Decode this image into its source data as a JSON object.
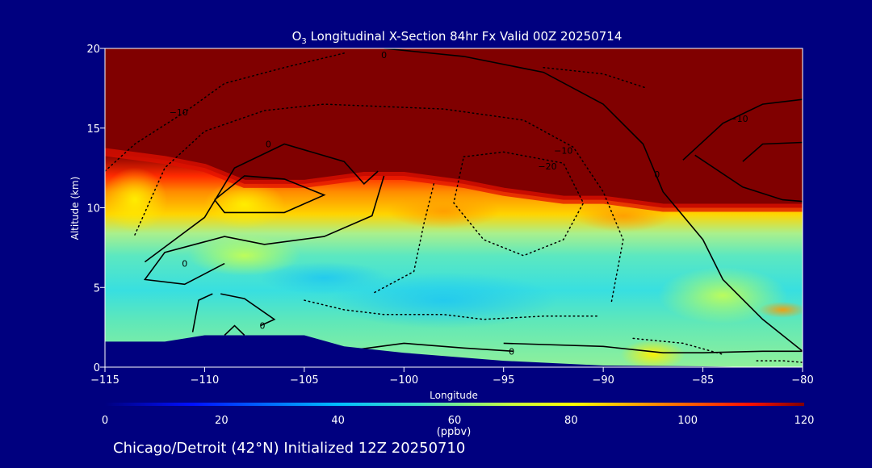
{
  "title": {
    "prefix": "O",
    "sub": "3",
    "rest": " Longitudinal X-Section 84hr  Fx Valid 00Z 20250714"
  },
  "subtitle": "Chicago/Detroit (42°N) Initialized 12Z 20250710",
  "colors": {
    "background": "#00007f",
    "text": "#ffffff",
    "terrain": "#00007f",
    "contour": "#000000"
  },
  "chart_data": {
    "type": "heatmap",
    "xlabel": "Longitude",
    "ylabel": "Altitude (km)",
    "xlim": [
      -115,
      -80
    ],
    "ylim": [
      0,
      20
    ],
    "x_ticks": [
      -115,
      -110,
      -105,
      -100,
      -95,
      -90,
      -85,
      -80
    ],
    "x_tick_labels": [
      "−115",
      "−110",
      "−105",
      "−100",
      "−95",
      "−90",
      "−85",
      "−80"
    ],
    "y_ticks": [
      0,
      5,
      10,
      15,
      20
    ],
    "y_tick_labels": [
      "0",
      "5",
      "10",
      "15",
      "20"
    ],
    "colorbar": {
      "label": "(ppbv)",
      "range": [
        0,
        120
      ],
      "ticks": [
        0,
        20,
        40,
        60,
        80,
        100,
        120
      ],
      "tick_labels": [
        "0",
        "20",
        "40",
        "60",
        "80",
        "100",
        "120"
      ]
    },
    "field_name": "ozone (ppbv)",
    "ozone_profile": {
      "longitudes": [
        -115,
        -112,
        -110,
        -108,
        -105,
        -102,
        -100,
        -97,
        -95,
        -92,
        -90,
        -87,
        -85,
        -82,
        -80
      ],
      "high_ozone_base_km": [
        13.5,
        13,
        12.5,
        11.5,
        11.5,
        12,
        12,
        11.5,
        11,
        10.5,
        10.5,
        10,
        10,
        10,
        10
      ],
      "mid_level_ozone_ppbv": [
        60,
        55,
        55,
        58,
        55,
        52,
        50,
        48,
        45,
        48,
        52,
        55,
        60,
        62,
        62
      ]
    },
    "terrain_km": {
      "longitudes": [
        -115,
        -112,
        -110,
        -107,
        -105,
        -103,
        -100,
        -95,
        -90,
        -85,
        -82,
        -80
      ],
      "heights": [
        1.6,
        1.6,
        2.0,
        2.0,
        2.0,
        1.3,
        0.9,
        0.4,
        0.1,
        0.05,
        0.0,
        0.0
      ]
    },
    "contour_labels": [
      {
        "text": "0",
        "lon": -101.0,
        "alt": 19.6
      },
      {
        "text": "−10",
        "lon": -111.3,
        "alt": 16.0
      },
      {
        "text": "0",
        "lon": -106.8,
        "alt": 14.0
      },
      {
        "text": "−10",
        "lon": -92.0,
        "alt": 13.6
      },
      {
        "text": "−20",
        "lon": -92.8,
        "alt": 12.6
      },
      {
        "text": "0",
        "lon": -87.3,
        "alt": 12.1
      },
      {
        "text": "−10",
        "lon": -83.2,
        "alt": 15.6
      },
      {
        "text": "0",
        "lon": -111.0,
        "alt": 6.5
      },
      {
        "text": "0",
        "lon": -107.1,
        "alt": 2.6
      },
      {
        "text": "0",
        "lon": -94.6,
        "alt": 1.0
      }
    ]
  }
}
